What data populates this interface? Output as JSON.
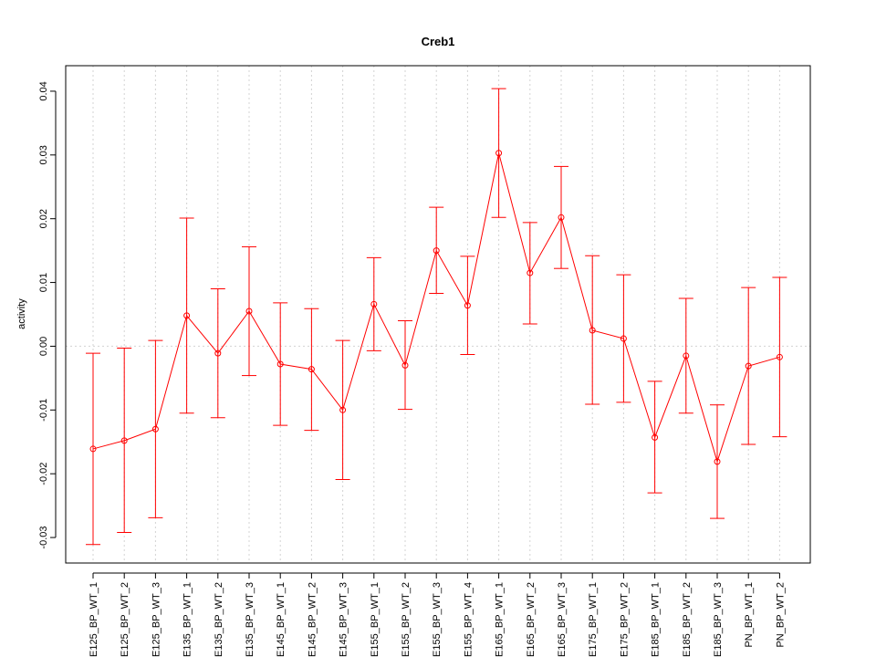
{
  "chart_data": {
    "type": "line",
    "title": "Creb1",
    "xlabel": "",
    "ylabel": "activity",
    "ylim": [
      -0.034,
      0.044
    ],
    "y_ticks": [
      -0.03,
      -0.02,
      -0.01,
      0.0,
      0.01,
      0.02,
      0.03,
      0.04
    ],
    "y_tick_labels": [
      "-0.03",
      "-0.02",
      "-0.01",
      "0.00",
      "0.01",
      "0.02",
      "0.03",
      "0.04"
    ],
    "grid": true,
    "color": "#ff0000",
    "categories": [
      "E125_BP_WT_1",
      "E125_BP_WT_2",
      "E125_BP_WT_3",
      "E135_BP_WT_1",
      "E135_BP_WT_2",
      "E135_BP_WT_3",
      "E145_BP_WT_1",
      "E145_BP_WT_2",
      "E145_BP_WT_3",
      "E155_BP_WT_1",
      "E155_BP_WT_2",
      "E155_BP_WT_3",
      "E155_BP_WT_4",
      "E165_BP_WT_1",
      "E165_BP_WT_2",
      "E165_BP_WT_3",
      "E175_BP_WT_1",
      "E175_BP_WT_2",
      "E185_BP_WT_1",
      "E185_BP_WT_2",
      "E185_BP_WT_3",
      "PN_BP_WT_1",
      "PN_BP_WT_2"
    ],
    "series": [
      {
        "values": [
          -0.0161,
          -0.0148,
          -0.013,
          0.0048,
          -0.0011,
          0.0055,
          -0.0028,
          -0.0036,
          -0.01,
          0.0066,
          -0.003,
          0.015,
          0.0064,
          0.0303,
          0.0115,
          0.0202,
          0.0025,
          0.0012,
          -0.0143,
          -0.0015,
          -0.0181,
          -0.0031,
          -0.0017
        ],
        "upper": [
          -0.0011,
          -0.0003,
          0.0009,
          0.0201,
          0.009,
          0.0156,
          0.0068,
          0.0059,
          0.0009,
          0.0139,
          0.004,
          0.0218,
          0.0141,
          0.0404,
          0.0194,
          0.0282,
          0.0142,
          0.0112,
          -0.0055,
          0.0075,
          -0.0092,
          0.0092,
          0.0108
        ],
        "lower": [
          -0.0311,
          -0.0292,
          -0.0269,
          -0.0105,
          -0.0112,
          -0.0046,
          -0.0124,
          -0.0132,
          -0.0209,
          -0.0007,
          -0.0099,
          0.0083,
          -0.0013,
          0.0202,
          0.0035,
          0.0122,
          -0.0091,
          -0.0088,
          -0.023,
          -0.0105,
          -0.027,
          -0.0154,
          -0.0142
        ]
      }
    ]
  }
}
